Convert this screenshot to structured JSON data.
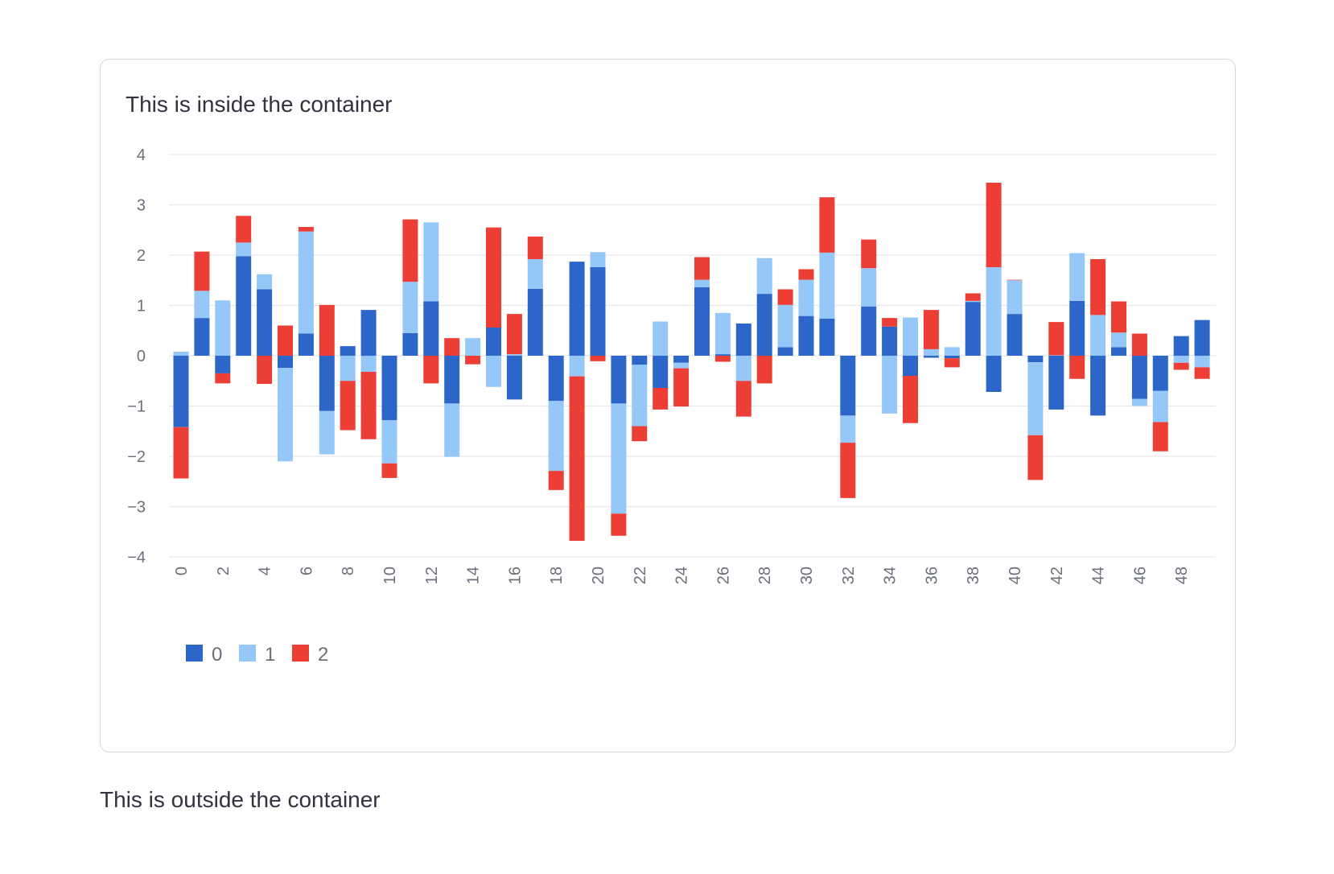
{
  "page": {
    "inside_text": "This is inside the container",
    "outside_text": "This is outside the container"
  },
  "chart_data": {
    "type": "bar",
    "stacked": true,
    "x": [
      0,
      1,
      2,
      3,
      4,
      5,
      6,
      7,
      8,
      9,
      10,
      11,
      12,
      13,
      14,
      15,
      16,
      17,
      18,
      19,
      20,
      21,
      22,
      23,
      24,
      25,
      26,
      27,
      28,
      29,
      30,
      31,
      32,
      33,
      34,
      35,
      36,
      37,
      38,
      39,
      40,
      41,
      42,
      43,
      44,
      45,
      46,
      47,
      48,
      49
    ],
    "x_tick_labels": [
      "0",
      "2",
      "4",
      "6",
      "8",
      "10",
      "12",
      "14",
      "16",
      "18",
      "20",
      "22",
      "24",
      "26",
      "28",
      "30",
      "32",
      "34",
      "36",
      "38",
      "40",
      "42",
      "44",
      "46",
      "48"
    ],
    "ylim": [
      -4,
      4
    ],
    "y_ticks": [
      4,
      3,
      2,
      1,
      0,
      -1,
      -2,
      -3,
      -4
    ],
    "y_tick_labels": [
      "4",
      "3",
      "2",
      "1",
      "0",
      "−1",
      "−2",
      "−3",
      "−4"
    ],
    "grid": true,
    "legend_placement": "bottom-left",
    "series": [
      {
        "name": "0",
        "color": "#2b66c8",
        "values": [
          -1.42,
          0.75,
          -0.35,
          1.98,
          1.32,
          -0.24,
          0.44,
          -1.1,
          0.19,
          0.91,
          -1.28,
          0.45,
          1.08,
          -0.95,
          0.0,
          0.56,
          -0.87,
          1.33,
          -0.9,
          1.87,
          1.76,
          -0.95,
          -0.18,
          -0.64,
          -0.14,
          1.36,
          0.03,
          0.64,
          1.23,
          0.17,
          0.79,
          0.74,
          -1.19,
          0.98,
          0.58,
          -0.4,
          -0.04,
          -0.05,
          1.07,
          -0.72,
          0.83,
          -0.13,
          -1.07,
          1.09,
          -1.19,
          0.17,
          -0.86,
          -0.7,
          0.39,
          0.71
        ]
      },
      {
        "name": "1",
        "color": "#95c8f8",
        "values": [
          0.08,
          0.54,
          1.1,
          0.27,
          0.3,
          -1.86,
          2.03,
          -0.86,
          -0.5,
          -0.32,
          -0.86,
          1.02,
          1.57,
          -1.06,
          0.35,
          -0.62,
          0.03,
          0.59,
          -1.39,
          -0.41,
          0.3,
          -2.19,
          -1.22,
          0.68,
          -0.11,
          0.15,
          0.82,
          -0.5,
          0.71,
          0.84,
          0.72,
          1.31,
          -0.54,
          0.76,
          -1.15,
          0.76,
          0.13,
          0.17,
          0.02,
          1.76,
          0.67,
          -1.45,
          0.01,
          0.95,
          0.81,
          0.29,
          -0.14,
          -0.62,
          -0.14,
          -0.23
        ]
      },
      {
        "name": "2",
        "color": "#ed3e35",
        "values": [
          -1.02,
          0.78,
          -0.2,
          0.53,
          -0.56,
          0.6,
          0.09,
          1.01,
          -0.98,
          -1.34,
          -0.29,
          1.24,
          -0.55,
          0.35,
          -0.17,
          1.99,
          0.8,
          0.45,
          -0.38,
          -3.27,
          -0.11,
          -0.44,
          -0.3,
          -0.43,
          -0.76,
          0.45,
          -0.12,
          -0.71,
          -0.55,
          0.31,
          0.21,
          1.1,
          -1.1,
          0.57,
          0.17,
          -0.94,
          0.78,
          -0.18,
          0.15,
          1.68,
          0.01,
          -0.89,
          0.66,
          -0.46,
          1.11,
          0.62,
          0.44,
          -0.58,
          -0.14,
          -0.23
        ]
      }
    ]
  }
}
